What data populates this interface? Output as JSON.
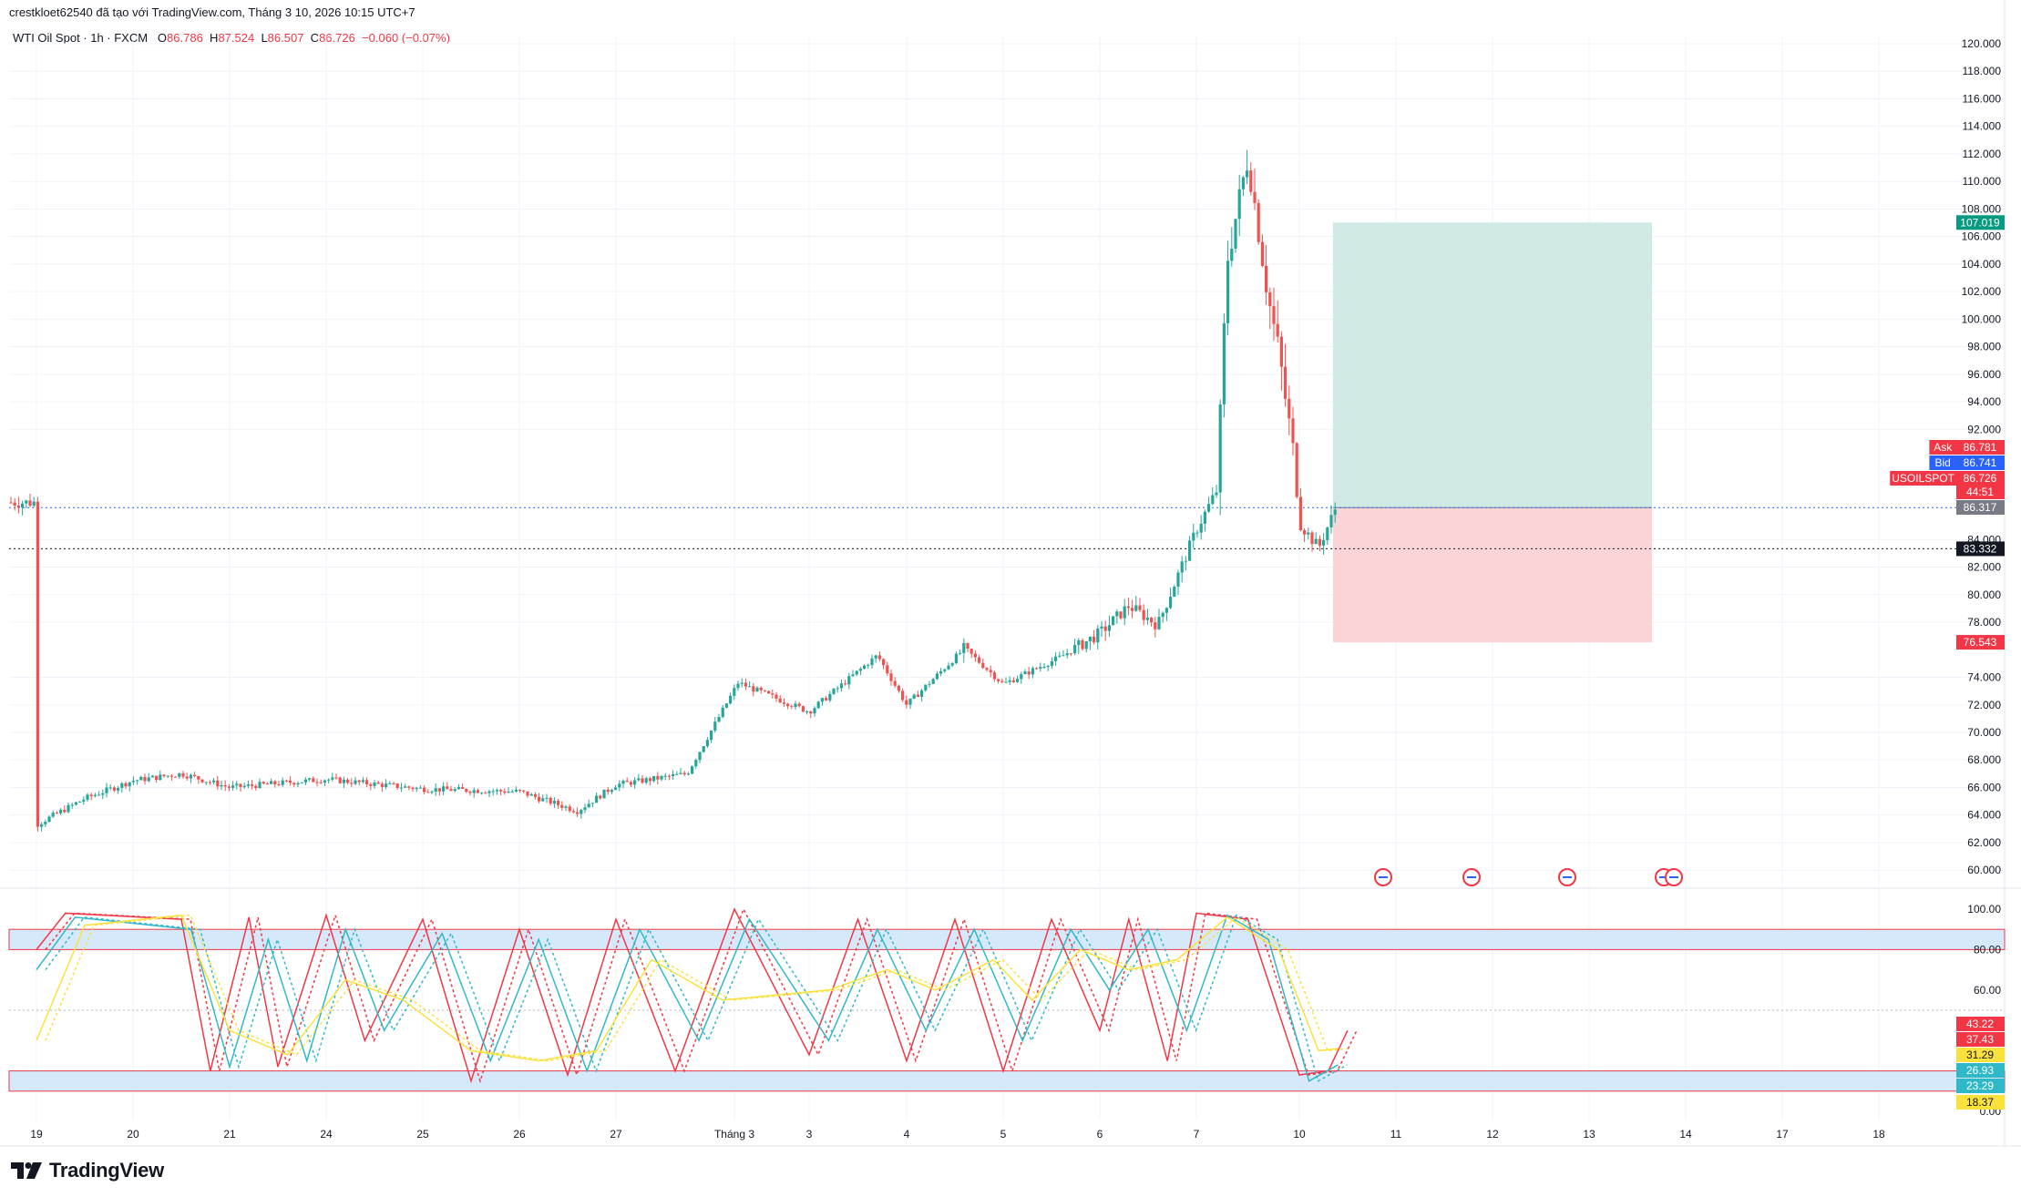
{
  "header": {
    "attribution": "crestkloet62540 đã tạo với TradingView.com, Tháng 3 10, 2026 10:15 UTC+7",
    "symbol": "WTI Oil Spot · 1h · FXCM",
    "o_label": "O",
    "o_value": "86.786",
    "h_label": "H",
    "h_value": "87.524",
    "l_label": "L",
    "l_value": "86.507",
    "c_label": "C",
    "c_value": "86.726",
    "change": "−0.060 (−0.07%)"
  },
  "colors": {
    "up": "#26a69a",
    "down": "#ef5350",
    "profit_zone": "#cfeae4",
    "loss_zone": "#fbd4d7",
    "stoch_red": "#f23645",
    "stoch_cyan": "#2fb8c8",
    "stoch_yellow": "#fbe13c",
    "band_fill": "#d6e9fb"
  },
  "chart_data": [
    {
      "type": "candlestick",
      "title": "WTI Oil Spot · 1h · FXCM",
      "x_tick_labels": [
        "19",
        "20",
        "21",
        "24",
        "25",
        "26",
        "27",
        "Tháng 3",
        "3",
        "4",
        "5",
        "6",
        "7",
        "10",
        "11",
        "12",
        "13",
        "14",
        "17",
        "18"
      ],
      "y_tick_labels": [
        "120.000",
        "118.000",
        "116.000",
        "114.000",
        "112.000",
        "110.000",
        "108.000",
        "106.000",
        "104.000",
        "102.000",
        "100.000",
        "98.000",
        "96.000",
        "94.000",
        "92.000",
        "84.000",
        "82.000",
        "80.000",
        "78.000",
        "74.000",
        "72.000",
        "70.000",
        "68.000",
        "66.000",
        "64.000",
        "62.000",
        "60.000"
      ],
      "ylim": [
        58.5,
        121
      ],
      "trend_anchors": [
        {
          "x": "19",
          "price": 63.3
        },
        {
          "x": "19.5",
          "price": 65.2
        },
        {
          "x": "20",
          "price": 66.5
        },
        {
          "x": "20.5",
          "price": 67.0
        },
        {
          "x": "21",
          "price": 66.0
        },
        {
          "x": "24",
          "price": 66.6
        },
        {
          "x": "25",
          "price": 65.9
        },
        {
          "x": "26",
          "price": 65.7
        },
        {
          "x": "26.6",
          "price": 64.3
        },
        {
          "x": "27",
          "price": 66.2
        },
        {
          "x": "27.6",
          "price": 67.0
        },
        {
          "x": "Tháng 3 (open)",
          "price": 73.6
        },
        {
          "x": "3",
          "price": 71.5
        },
        {
          "x": "3.7",
          "price": 75.6
        },
        {
          "x": "4",
          "price": 72.0
        },
        {
          "x": "4.6",
          "price": 76.1
        },
        {
          "x": "5",
          "price": 73.5
        },
        {
          "x": "5.6",
          "price": 75.5
        },
        {
          "x": "6",
          "price": 77.2
        },
        {
          "x": "6.3",
          "price": 79.2
        },
        {
          "x": "6.6",
          "price": 77.8
        },
        {
          "x": "7",
          "price": 84.7
        },
        {
          "x": "7.2",
          "price": 87.6
        },
        {
          "x": "7.3",
          "price": 104.3
        },
        {
          "x": "7.5",
          "price": 111.8
        },
        {
          "x": "7.7",
          "price": 101.5
        },
        {
          "x": "7.8",
          "price": 97.6
        },
        {
          "x": "7.95",
          "price": 89.8
        },
        {
          "x": "10",
          "price": 85.2
        },
        {
          "x": "10.2",
          "price": 83.4
        },
        {
          "x": "10.4",
          "price": 86.7
        }
      ],
      "last_close": 86.726,
      "position": {
        "entry": 86.317,
        "take_profit": 107.019,
        "stop_loss": 76.543
      },
      "price_tags": [
        {
          "label": "",
          "value": "107.019",
          "color": "#089981"
        },
        {
          "label": "Ask",
          "value": "86.781",
          "color": "#f23645"
        },
        {
          "label": "Bid",
          "value": "86.741",
          "color": "#2962ff"
        },
        {
          "label": "USOILSPOT",
          "value": "86.726",
          "color": "#f23645"
        },
        {
          "label": "",
          "value": "44:51",
          "color": "#f23645"
        },
        {
          "label": "",
          "value": "86.317",
          "color": "#787b86"
        },
        {
          "label": "",
          "value": "83.332",
          "color": "#131722"
        },
        {
          "label": "",
          "value": "76.543",
          "color": "#f23645"
        }
      ],
      "horizontal_lines": [
        {
          "value": 86.317,
          "style": "dotted",
          "color": "#2962ff"
        },
        {
          "value": 83.332,
          "style": "dotted",
          "color": "#131722"
        }
      ],
      "event_markers": [
        "11 (1)",
        "12 (1)",
        "13 (1)",
        "14 (2)"
      ]
    },
    {
      "type": "line",
      "title": "Stochastic",
      "y_tick_labels": [
        "100.00",
        "80.00",
        "60.00",
        "0.00"
      ],
      "ylim": [
        0,
        100
      ],
      "bands": [
        {
          "low": 80,
          "high": 90
        },
        {
          "low": 10,
          "high": 20
        }
      ],
      "current_values": [
        {
          "value": "43.22",
          "color": "#f23645"
        },
        {
          "value": "37.43",
          "color": "#f23645"
        },
        {
          "value": "31.29",
          "color": "#fbe13c"
        },
        {
          "value": "26.93",
          "color": "#2fb8c8"
        },
        {
          "value": "23.29",
          "color": "#2fb8c8"
        },
        {
          "value": "18.37",
          "color": "#fbe13c"
        }
      ],
      "series": [
        {
          "color": "#f23645",
          "anchors": [
            [
              19,
              80
            ],
            [
              19.3,
              98
            ],
            [
              20.5,
              95
            ],
            [
              20.8,
              20
            ],
            [
              21.2,
              96
            ],
            [
              21.5,
              22
            ],
            [
              24,
              97
            ],
            [
              24.4,
              35
            ],
            [
              25,
              95
            ],
            [
              25.5,
              15
            ],
            [
              26,
              90
            ],
            [
              26.5,
              18
            ],
            [
              27,
              95
            ],
            [
              27.5,
              20
            ],
            [
              28,
              100
            ],
            [
              3,
              28
            ],
            [
              3.5,
              95
            ],
            [
              4,
              25
            ],
            [
              4.5,
              95
            ],
            [
              5,
              20
            ],
            [
              5.5,
              95
            ],
            [
              6,
              40
            ],
            [
              6.3,
              95
            ],
            [
              6.7,
              25
            ],
            [
              7,
              98
            ],
            [
              7.5,
              95
            ],
            [
              8,
              18
            ],
            [
              8.3,
              20
            ],
            [
              8.5,
              40
            ]
          ]
        },
        {
          "color": "#2fb8c8",
          "anchors": [
            [
              19,
              70
            ],
            [
              19.4,
              96
            ],
            [
              20.6,
              90
            ],
            [
              21,
              22
            ],
            [
              21.4,
              85
            ],
            [
              21.8,
              25
            ],
            [
              24.2,
              90
            ],
            [
              24.6,
              40
            ],
            [
              25.2,
              88
            ],
            [
              25.7,
              25
            ],
            [
              26.2,
              85
            ],
            [
              26.7,
              20
            ],
            [
              27.2,
              90
            ],
            [
              27.7,
              35
            ],
            [
              28.2,
              95
            ],
            [
              3.2,
              35
            ],
            [
              3.7,
              90
            ],
            [
              4.2,
              40
            ],
            [
              4.7,
              90
            ],
            [
              5.2,
              35
            ],
            [
              5.7,
              90
            ],
            [
              6.1,
              60
            ],
            [
              6.5,
              90
            ],
            [
              6.9,
              40
            ],
            [
              7.3,
              97
            ],
            [
              7.7,
              85
            ],
            [
              8.1,
              15
            ],
            [
              8.4,
              23
            ]
          ]
        },
        {
          "color": "#fbe13c",
          "anchors": [
            [
              19,
              35
            ],
            [
              19.5,
              92
            ],
            [
              20.5,
              97
            ],
            [
              21,
              40
            ],
            [
              21.6,
              28
            ],
            [
              24.2,
              65
            ],
            [
              24.8,
              55
            ],
            [
              25.5,
              30
            ],
            [
              26.2,
              25
            ],
            [
              26.8,
              30
            ],
            [
              27.3,
              75
            ],
            [
              27.9,
              55
            ],
            [
              3.2,
              60
            ],
            [
              3.8,
              70
            ],
            [
              4.3,
              60
            ],
            [
              4.9,
              75
            ],
            [
              5.3,
              55
            ],
            [
              5.8,
              80
            ],
            [
              6.3,
              70
            ],
            [
              6.8,
              75
            ],
            [
              7.3,
              96
            ],
            [
              7.8,
              80
            ],
            [
              8.2,
              30
            ],
            [
              8.4,
              31
            ]
          ]
        }
      ]
    }
  ],
  "logo": {
    "text": "TradingView"
  }
}
